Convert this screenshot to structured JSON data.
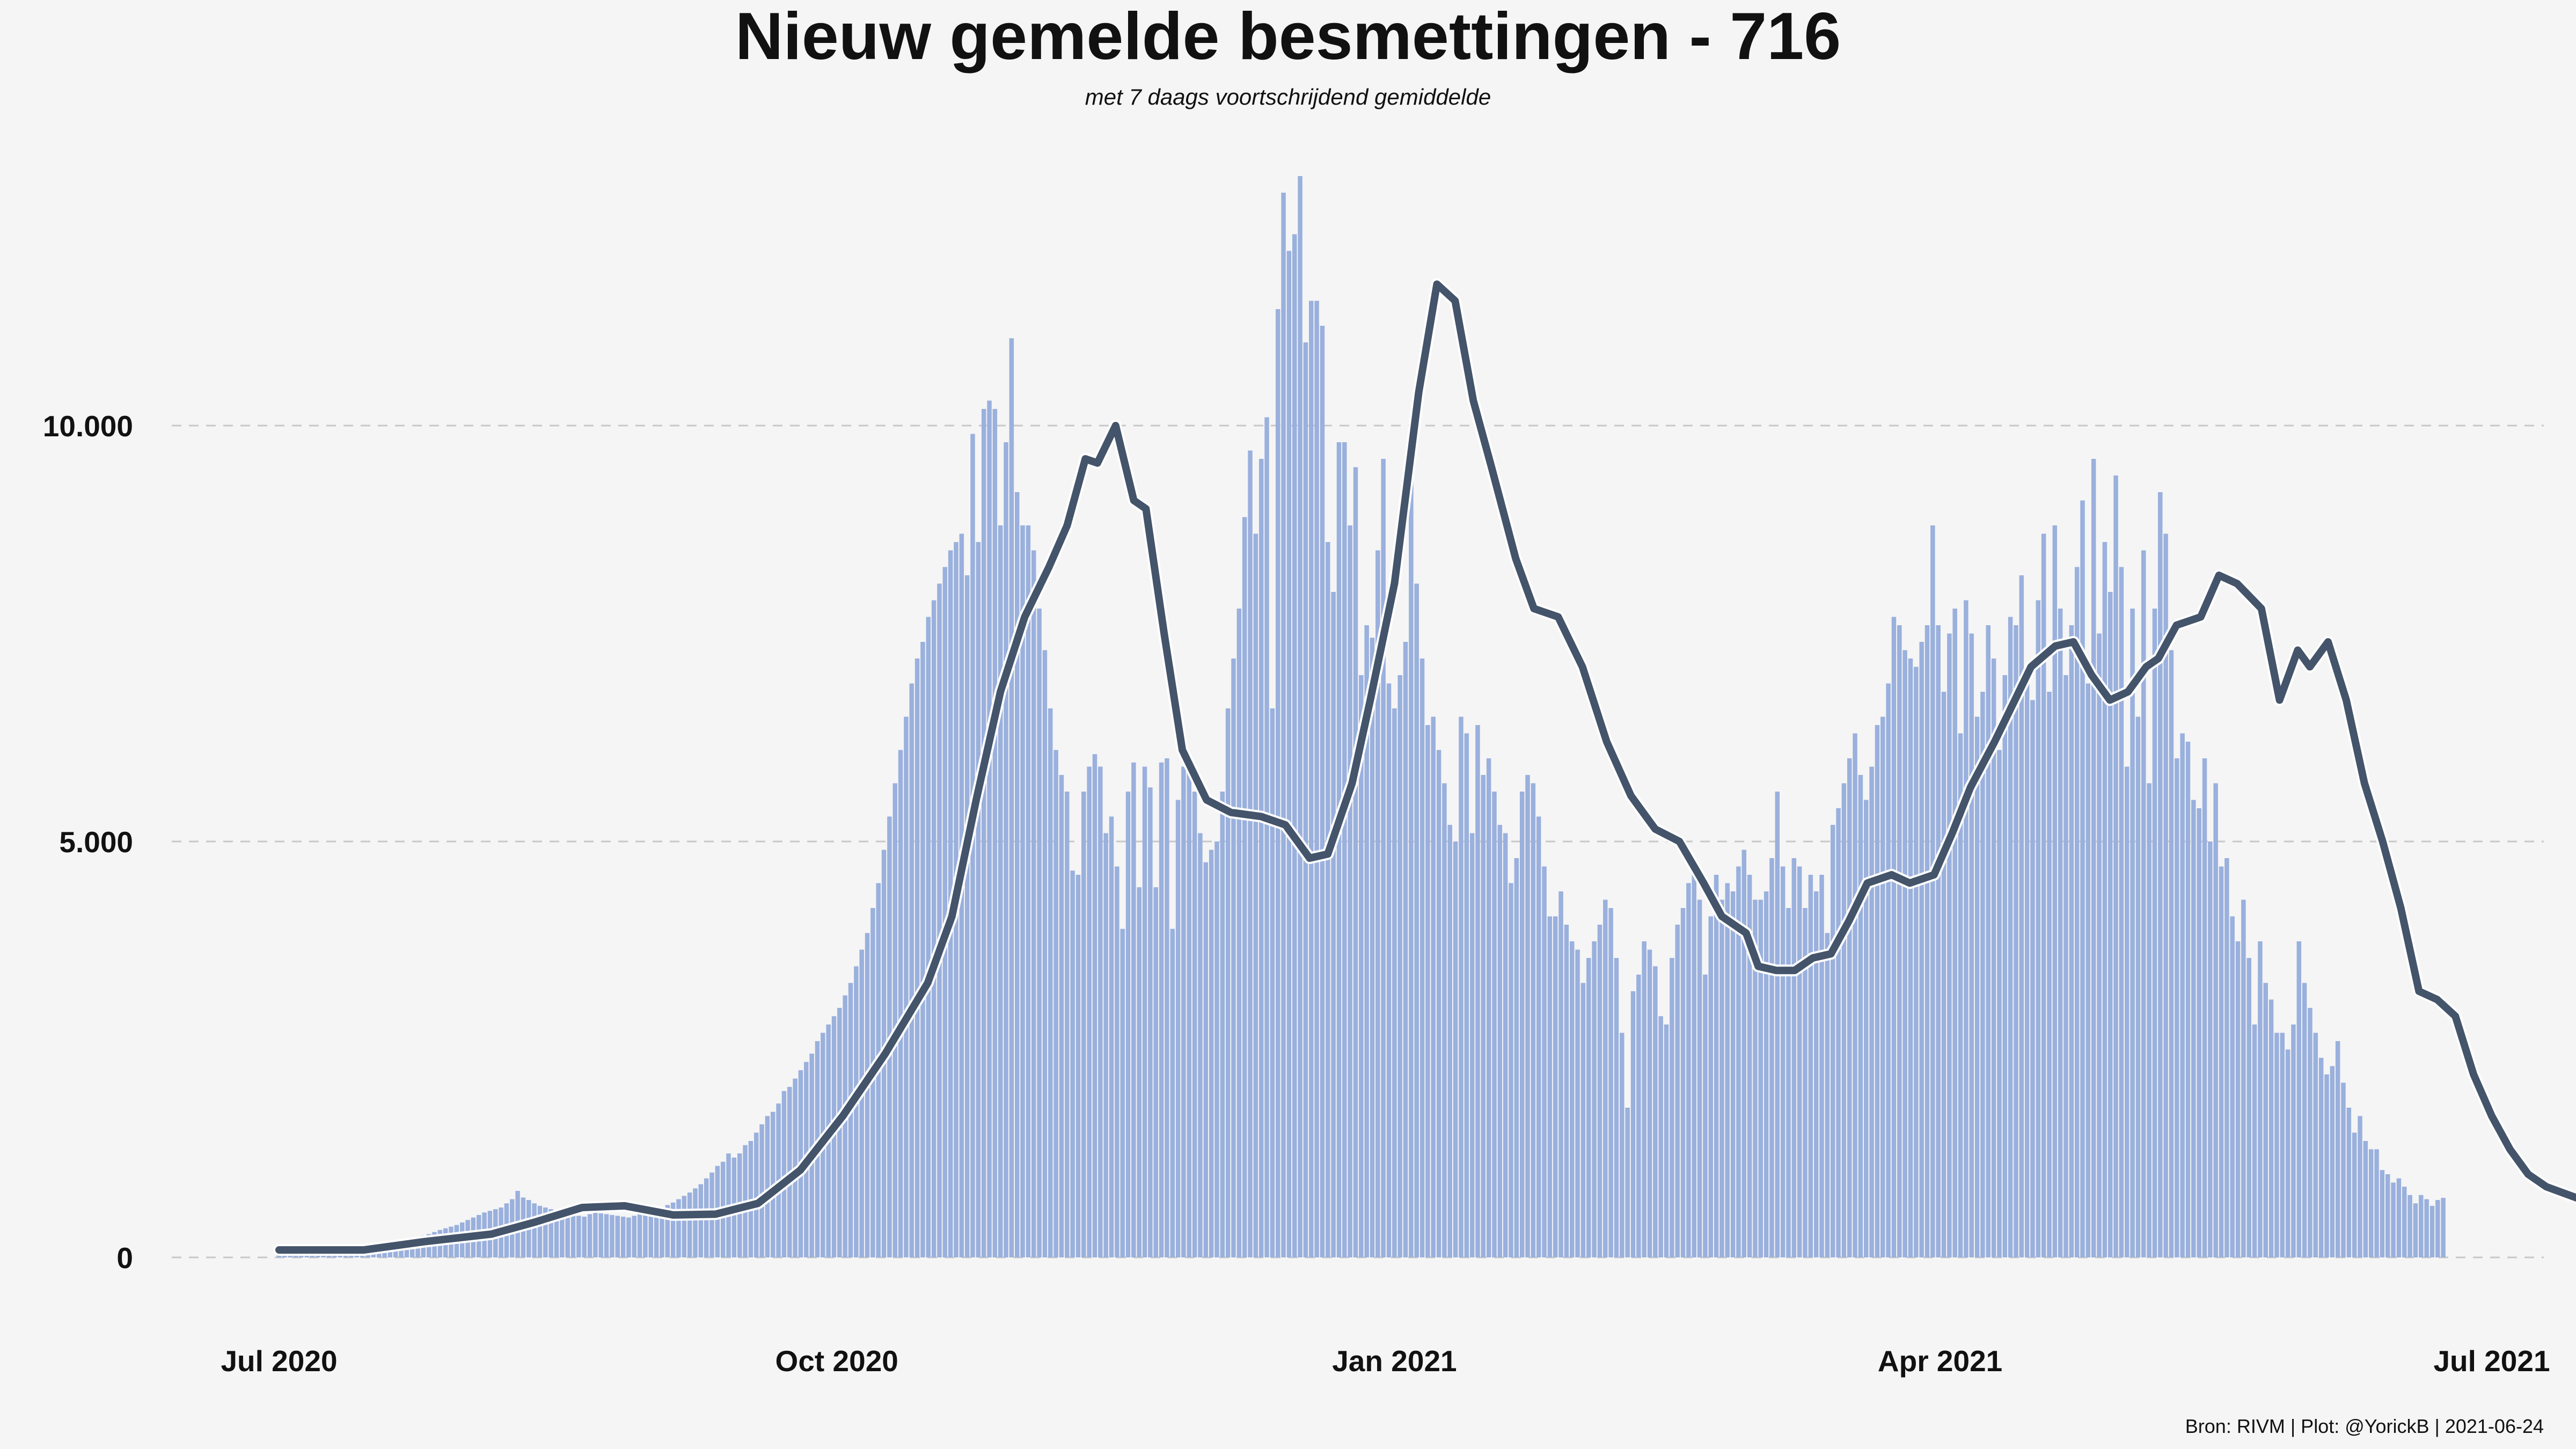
{
  "chart_data": {
    "type": "bar",
    "title": "Nieuw gemelde besmettingen  -   716",
    "subtitle": "met 7 daags voortschrijdend gemiddelde",
    "caption": "Bron: RIVM | Plot: @YorickB |  2021-06-24",
    "x_start": "2020-07-01",
    "x_end": "2021-06-23",
    "xlim": [
      "2020-07-01",
      "2021-07-01"
    ],
    "ylim": [
      0,
      12800
    ],
    "y_ticks": [
      {
        "value": 0,
        "label": "0"
      },
      {
        "value": 5000,
        "label": "5.000"
      },
      {
        "value": 10000,
        "label": "10.000"
      }
    ],
    "x_ticks": [
      {
        "date": "2020-07-01",
        "label": "Jul 2020"
      },
      {
        "date": "2020-10-01",
        "label": "Oct 2020"
      },
      {
        "date": "2021-01-01",
        "label": "Jan 2021"
      },
      {
        "date": "2021-04-01",
        "label": "Apr 2021"
      },
      {
        "date": "2021-07-01",
        "label": "Jul 2021"
      }
    ],
    "grid": "horizontal dashed",
    "series": [
      {
        "kind": "bar",
        "color": "#9ab0dd",
        "values": [
          88,
          95,
          82,
          76,
          61,
          68,
          80,
          90,
          95,
          102,
          110,
          118,
          125,
          133,
          140,
          150,
          160,
          165,
          170,
          178,
          185,
          193,
          200,
          210,
          220,
          240,
          260,
          280,
          305,
          330,
          350,
          370,
          390,
          420,
          450,
          480,
          510,
          540,
          560,
          580,
          600,
          650,
          700,
          800,
          720,
          690,
          650,
          620,
          600,
          580,
          560,
          540,
          520,
          510,
          500,
          490,
          520,
          540,
          530,
          520,
          510,
          500,
          490,
          480,
          500,
          520,
          540,
          560,
          580,
          600,
          630,
          660,
          700,
          740,
          780,
          830,
          880,
          950,
          1020,
          1100,
          1150,
          1250,
          1200,
          1250,
          1350,
          1400,
          1500,
          1600,
          1700,
          1750,
          1850,
          2000,
          2050,
          2150,
          2250,
          2350,
          2450,
          2600,
          2700,
          2800,
          2900,
          3000,
          3150,
          3300,
          3500,
          3700,
          3900,
          4200,
          4500,
          4900,
          5300,
          5700,
          6100,
          6500,
          6900,
          7200,
          7400,
          7700,
          7900,
          8100,
          8300,
          8500,
          8600,
          8700,
          8200,
          9900,
          8600,
          10200,
          10300,
          10200,
          8800,
          9800,
          11050,
          9200,
          8800,
          8800,
          8500,
          7800,
          7300,
          6600,
          6100,
          5800,
          5600,
          4650,
          4600,
          5600,
          5900,
          6050,
          5900,
          5100,
          5300,
          4700,
          3950,
          5600,
          5950,
          4450,
          5900,
          5650,
          4450,
          5950,
          6000,
          3950,
          5500,
          5900,
          5950,
          5600,
          5100,
          4750,
          4900,
          5000,
          5600,
          6600,
          7200,
          7800,
          8900,
          9700,
          8700,
          9600,
          10100,
          6600,
          11400,
          12800,
          12100,
          12300,
          13000,
          11000,
          11500,
          11500,
          11200,
          8600,
          8000,
          9800,
          9800,
          8800,
          9500,
          7000,
          7600,
          7450,
          8500,
          9600,
          6900,
          6600,
          7000,
          7400,
          9800,
          8100,
          7200,
          6400,
          6500,
          6100,
          5700,
          5200,
          5000,
          6500,
          6300,
          5100,
          6400,
          5800,
          6000,
          5600,
          5200,
          5100,
          4500,
          4800,
          5600,
          5800,
          5700,
          5300,
          4700,
          4100,
          4100,
          4400,
          4000,
          3800,
          3700,
          3300,
          3600,
          3800,
          4000,
          4300,
          4200,
          3600,
          2700,
          1800,
          3200,
          3400,
          3800,
          3700,
          3500,
          2900,
          2800,
          3600,
          4000,
          4200,
          4500,
          4600,
          4300,
          3400,
          4100,
          4600,
          4300,
          4500,
          4400,
          4700,
          4900,
          4600,
          4300,
          4300,
          4400,
          4800,
          5600,
          4700,
          4200,
          4800,
          4700,
          4200,
          4600,
          4400,
          4600,
          3900,
          5200,
          5400,
          5700,
          6000,
          6300,
          5800,
          5500,
          5900,
          6400,
          6500,
          6900,
          7700,
          7600,
          7300,
          7200,
          7100,
          7400,
          7600,
          8800,
          7600,
          6800,
          7500,
          7800,
          6300,
          7900,
          7500,
          6500,
          6800,
          7600,
          7200,
          6100,
          7000,
          7700,
          7600,
          8200,
          7100,
          6700,
          7900,
          8700,
          6800,
          8800,
          7800,
          7000,
          7600,
          8300,
          9100,
          6900,
          9600,
          7500,
          8600,
          8000,
          9400,
          8300,
          5900,
          7800,
          6500,
          8500,
          5700,
          7800,
          9200,
          8700,
          7300,
          6000,
          6300,
          6200,
          5500,
          5400,
          6000,
          5000,
          5700,
          4700,
          4800,
          4100,
          3800,
          4300,
          3600,
          2800,
          3800,
          3300,
          3100,
          2700,
          2700,
          2500,
          2800,
          3800,
          3300,
          3000,
          2700,
          2400,
          2200,
          2300,
          2600,
          2100,
          1800,
          1500,
          1700,
          1400,
          1300,
          1300,
          1050,
          1000,
          900,
          950,
          850,
          750,
          650,
          750,
          700,
          620,
          690,
          716
        ]
      },
      {
        "kind": "line",
        "label": "7 daags voortschrijdend gemiddelde",
        "color": "#44546a",
        "points": [
          [
            "2020-07-01",
            90
          ],
          [
            "2020-07-15",
            90
          ],
          [
            "2020-07-25",
            190
          ],
          [
            "2020-08-05",
            280
          ],
          [
            "2020-08-12",
            420
          ],
          [
            "2020-08-20",
            600
          ],
          [
            "2020-08-27",
            620
          ],
          [
            "2020-09-04",
            510
          ],
          [
            "2020-09-11",
            520
          ],
          [
            "2020-09-18",
            650
          ],
          [
            "2020-09-25",
            1050
          ],
          [
            "2020-10-02",
            1700
          ],
          [
            "2020-10-09",
            2450
          ],
          [
            "2020-10-16",
            3300
          ],
          [
            "2020-10-20",
            4100
          ],
          [
            "2020-10-24",
            5500
          ],
          [
            "2020-10-28",
            6800
          ],
          [
            "2020-11-01",
            7700
          ],
          [
            "2020-11-05",
            8300
          ],
          [
            "2020-11-08",
            8800
          ],
          [
            "2020-11-11",
            9600
          ],
          [
            "2020-11-13",
            9550
          ],
          [
            "2020-11-16",
            10000
          ],
          [
            "2020-11-19",
            9100
          ],
          [
            "2020-11-21",
            9000
          ],
          [
            "2020-11-24",
            7500
          ],
          [
            "2020-11-27",
            6100
          ],
          [
            "2020-12-01",
            5500
          ],
          [
            "2020-12-05",
            5350
          ],
          [
            "2020-12-10",
            5300
          ],
          [
            "2020-12-14",
            5200
          ],
          [
            "2020-12-18",
            4800
          ],
          [
            "2020-12-21",
            4850
          ],
          [
            "2020-12-25",
            5700
          ],
          [
            "2020-12-28",
            6700
          ],
          [
            "2021-01-01",
            8100
          ],
          [
            "2021-01-05",
            10400
          ],
          [
            "2021-01-08",
            11700
          ],
          [
            "2021-01-11",
            11500
          ],
          [
            "2021-01-14",
            10300
          ],
          [
            "2021-01-17",
            9500
          ],
          [
            "2021-01-21",
            8400
          ],
          [
            "2021-01-24",
            7800
          ],
          [
            "2021-01-28",
            7700
          ],
          [
            "2021-02-01",
            7100
          ],
          [
            "2021-02-05",
            6200
          ],
          [
            "2021-02-09",
            5550
          ],
          [
            "2021-02-13",
            5150
          ],
          [
            "2021-02-17",
            5000
          ],
          [
            "2021-02-21",
            4500
          ],
          [
            "2021-02-24",
            4100
          ],
          [
            "2021-02-28",
            3900
          ],
          [
            "2021-03-02",
            3500
          ],
          [
            "2021-03-05",
            3450
          ],
          [
            "2021-03-08",
            3450
          ],
          [
            "2021-03-11",
            3600
          ],
          [
            "2021-03-14",
            3650
          ],
          [
            "2021-03-17",
            4050
          ],
          [
            "2021-03-20",
            4500
          ],
          [
            "2021-03-24",
            4600
          ],
          [
            "2021-03-27",
            4500
          ],
          [
            "2021-03-31",
            4600
          ],
          [
            "2021-04-03",
            5100
          ],
          [
            "2021-04-06",
            5650
          ],
          [
            "2021-04-10",
            6200
          ],
          [
            "2021-04-13",
            6650
          ],
          [
            "2021-04-16",
            7100
          ],
          [
            "2021-04-20",
            7350
          ],
          [
            "2021-04-23",
            7400
          ],
          [
            "2021-04-26",
            7000
          ],
          [
            "2021-04-29",
            6700
          ],
          [
            "2021-05-02",
            6800
          ],
          [
            "2021-05-05",
            7100
          ],
          [
            "2021-05-07",
            7200
          ],
          [
            "2021-05-10",
            7600
          ],
          [
            "2021-05-14",
            7700
          ],
          [
            "2021-05-17",
            8200
          ],
          [
            "2021-05-20",
            8100
          ],
          [
            "2021-05-24",
            7800
          ],
          [
            "2021-05-27",
            6700
          ],
          [
            "2021-05-30",
            7300
          ],
          [
            "2021-06-01",
            7100
          ],
          [
            "2021-06-04",
            7400
          ],
          [
            "2021-06-07",
            6700
          ],
          [
            "2021-06-10",
            5700
          ],
          [
            "2021-06-13",
            5000
          ],
          [
            "2021-06-16",
            4200
          ],
          [
            "2021-06-19",
            3200
          ],
          [
            "2021-06-22",
            3100
          ],
          [
            "2021-06-25",
            2900
          ],
          [
            "2021-06-28",
            2200
          ],
          [
            "2021-07-01",
            1700
          ],
          [
            "2021-07-04",
            1300
          ],
          [
            "2021-07-07",
            1000
          ],
          [
            "2021-07-10",
            850
          ],
          [
            "2021-07-15",
            716
          ]
        ]
      }
    ]
  }
}
